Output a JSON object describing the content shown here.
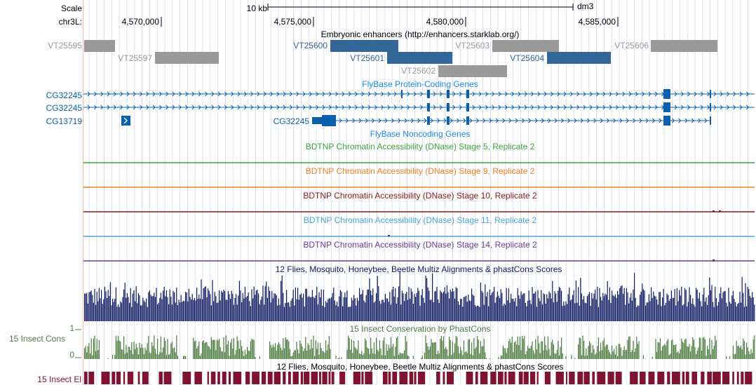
{
  "header": {
    "scale_label": "Scale",
    "chrom_label": "chr3L:",
    "scale_bar_label": "10 kb",
    "assembly": "dm3",
    "ruler_ticks": [
      "4,570,000",
      "4,575,000",
      "4,580,000",
      "4,585,000"
    ]
  },
  "colors": {
    "enhancer_gray": "#999999",
    "enhancer_blue": "#336699",
    "gene_blue": "#0A5FAE",
    "noncoding_blue": "#1E88E5",
    "stage5": "#3CA33C",
    "stage9": "#F07F20",
    "stage10": "#8B1A1A",
    "stage11": "#4DA6D9",
    "stage14": "#6A3D9A",
    "multiz": "#0F1B63",
    "phastcons": "#4C7D3F",
    "elements": "#80132F",
    "left_strip": "#F4B6B6",
    "grid": "#C6CCEB"
  },
  "tracks": {
    "enhancers": {
      "title": "Embryonic enhancers (http://enhancers.starklab.org/)",
      "items": [
        {
          "name": "VT25595",
          "color": "gray"
        },
        {
          "name": "VT25597",
          "color": "gray"
        },
        {
          "name": "VT25600",
          "color": "blue"
        },
        {
          "name": "VT25601",
          "color": "blue"
        },
        {
          "name": "VT25602",
          "color": "gray"
        },
        {
          "name": "VT25603",
          "color": "gray"
        },
        {
          "name": "VT25604",
          "color": "blue"
        },
        {
          "name": "VT25606",
          "color": "gray"
        }
      ]
    },
    "protein_coding": {
      "title": "FlyBase Protein-Coding Genes",
      "genes": [
        "CG32245",
        "CG32245",
        "CG13719"
      ]
    },
    "noncoding": {
      "title": "FlyBase Noncoding Genes",
      "gene": "CG32245"
    },
    "dnase": [
      {
        "title": "BDTNP Chromatin Accessibility (DNase) Stage 5, Replicate 2",
        "color": "stage5"
      },
      {
        "title": "BDTNP Chromatin Accessibility (DNase) Stage 9, Replicate 2",
        "color": "stage9"
      },
      {
        "title": "BDTNP Chromatin Accessibility (DNase) Stage 10, Replicate 2",
        "color": "stage10"
      },
      {
        "title": "BDTNP Chromatin Accessibility (DNase) Stage 11, Replicate 2",
        "color": "stage11"
      },
      {
        "title": "BDTNP Chromatin Accessibility (DNase) Stage 14, Replicate 2",
        "color": "stage14"
      }
    ],
    "multiz": {
      "title": "12 Flies, Mosquito, Honeybee, Beetle Multiz Alignments & phastCons Scores"
    },
    "phastcons": {
      "title": "15 Insect Conservation by PhastCons",
      "side_label": "15 Insect Cons",
      "axis_max": "1",
      "axis_min": "0"
    },
    "elements": {
      "title": "12 Flies, Mosquito, Honeybee, Beetle Multiz Alignments & phastCons Scores",
      "side_label": "15 Insect El"
    }
  }
}
